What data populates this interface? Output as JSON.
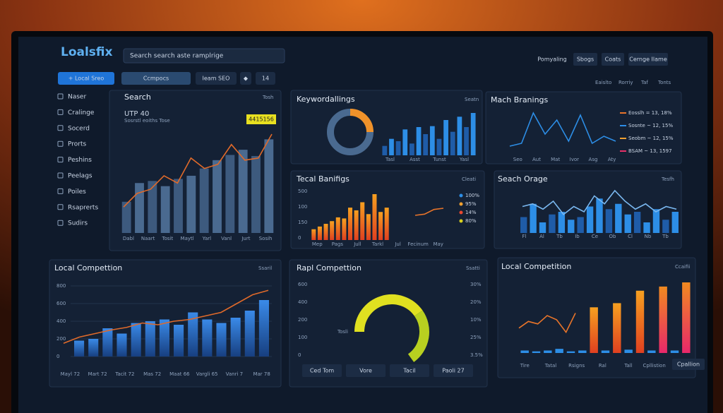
{
  "header": {
    "logo": "Loalsfix",
    "search": "Search search aste ramplrige",
    "nav": [
      "Pomyaling",
      "Sbogs",
      "Coats",
      "Cernge Ilame"
    ],
    "subnav": [
      "Eaislto",
      "Rorriy",
      "Taf",
      "Tonts"
    ]
  },
  "toolbar": [
    "+ Local Sreo",
    "Ccmpocs",
    "Ieam SEO",
    "◆",
    "14"
  ],
  "sidebar": [
    "Naser",
    "Cralinge",
    "Socerd",
    "Prorts",
    "Peshins",
    "Peelags",
    "Poiles",
    "Rsaprerts",
    "Sudirs"
  ],
  "search": {
    "title": "Search",
    "link": "Tosh",
    "metric": "UTP 40",
    "sub": "Sosrstl eoiths Tose",
    "badge": "4415156",
    "xlabels": [
      "Dabl",
      "Naart",
      "Tosit",
      "Maytl",
      "Yarl",
      "Vanl",
      "Jurt",
      "Sosih"
    ],
    "values": [
      30,
      48,
      50,
      45,
      52,
      55,
      62,
      70,
      75,
      80,
      74,
      90
    ],
    "line": [
      25,
      38,
      42,
      55,
      48,
      72,
      62,
      66,
      85,
      70,
      72,
      95
    ]
  },
  "keywords": {
    "title": "Keywordallings",
    "link": "Seatn",
    "donut": [
      25,
      75
    ],
    "xlabels": [
      "Tasl",
      "Asst",
      "Tunst",
      "Yasl"
    ],
    "values": [
      20,
      35,
      30,
      55,
      25,
      60,
      45,
      62,
      35,
      75,
      50,
      82,
      60,
      90
    ]
  },
  "branings": {
    "title": "Mach Branings",
    "xlabels": [
      "Seo",
      "Aut",
      "Mat",
      "Ivor",
      "Asg",
      "Aty"
    ],
    "line": [
      8,
      12,
      55,
      25,
      45,
      15,
      52,
      12,
      22,
      15
    ],
    "legend": [
      {
        "name": "Eosslh = 13, 18%",
        "color": "#e8742a"
      },
      {
        "name": "Sosnte ~ 12, 15%",
        "color": "#2d8ee6"
      },
      {
        "name": "Seobm ~ 12, 15%",
        "color": "#f0a030"
      },
      {
        "name": "BSAM ~ 13, 1597",
        "color": "#e83068"
      }
    ]
  },
  "tecal": {
    "title": "Tecal Banifigs",
    "link": "Cleati",
    "axis_labels": [
      "500",
      "100",
      "150",
      "0"
    ],
    "xlabels": [
      "Mep",
      "Pags",
      "Jull",
      "Tarkl",
      "Jul",
      "Fecinum",
      "May"
    ],
    "values": [
      20,
      25,
      30,
      35,
      42,
      40,
      60,
      55,
      70,
      48,
      85,
      52,
      60
    ],
    "line": [
      30,
      35,
      55,
      60
    ],
    "legend": [
      {
        "name": "100%",
        "color": "#2d8ee6"
      },
      {
        "name": "95%",
        "color": "#f0a030"
      },
      {
        "name": "14%",
        "color": "#e84830"
      },
      {
        "name": "80%",
        "color": "#d8d020"
      }
    ]
  },
  "orage": {
    "title": "Seach Orage",
    "link": "Tesfh",
    "xlabels": [
      "Fl",
      "Al",
      "Tb",
      "Ib",
      "Ce",
      "Ob",
      "Cl",
      "Nb",
      "Tb"
    ],
    "values": [
      30,
      55,
      20,
      35,
      40,
      25,
      30,
      50,
      65,
      45,
      55,
      35,
      40,
      20,
      45,
      25,
      40
    ],
    "line": [
      50,
      55,
      45,
      60,
      35,
      50,
      40,
      70,
      55,
      80,
      60,
      45,
      55,
      40,
      50,
      45
    ]
  },
  "local": {
    "title": "Local Compettion",
    "link": "Ssaril",
    "ylim": [
      0,
      800
    ],
    "yticks": [
      0,
      200,
      400,
      600,
      800
    ],
    "xlabels": [
      "Mayl 72",
      "Mart 72",
      "Tacit 72",
      "Mas 72",
      "Maat 66",
      "Vargli 65",
      "Vanri 7",
      "Mar 78"
    ],
    "values": [
      180,
      200,
      320,
      260,
      380,
      400,
      420,
      360,
      500,
      420,
      380,
      440,
      520,
      640
    ],
    "line": [
      150,
      220,
      260,
      300,
      330,
      380,
      360,
      400,
      420,
      460,
      500,
      600,
      700,
      750
    ]
  },
  "rapl": {
    "title": "Rapl Compettion",
    "link": "Ssatti",
    "left_labels": [
      "600",
      "400",
      "200",
      "100",
      "0"
    ],
    "right_labels": [
      "30%",
      "20%",
      "10%",
      "25%",
      "3.5%"
    ],
    "gauge_label": "Tosli",
    "gauge": [
      62,
      38
    ],
    "buttons": [
      "Ced Tom",
      "Vore",
      "Tacil",
      "Paoli 27"
    ]
  },
  "competition": {
    "title": "Local Competition",
    "link": "Ccaifii",
    "xlabels": [
      "Tire",
      "Tatal",
      "Rsigns",
      "Ral",
      "Tall",
      "Cpllistion"
    ],
    "values": [
      3,
      2,
      3,
      5,
      2,
      3,
      55,
      3,
      60,
      4,
      75,
      3,
      80,
      3,
      85
    ],
    "line": [
      30,
      38,
      35,
      45,
      40,
      25,
      48
    ],
    "button": "Cpallion"
  }
}
